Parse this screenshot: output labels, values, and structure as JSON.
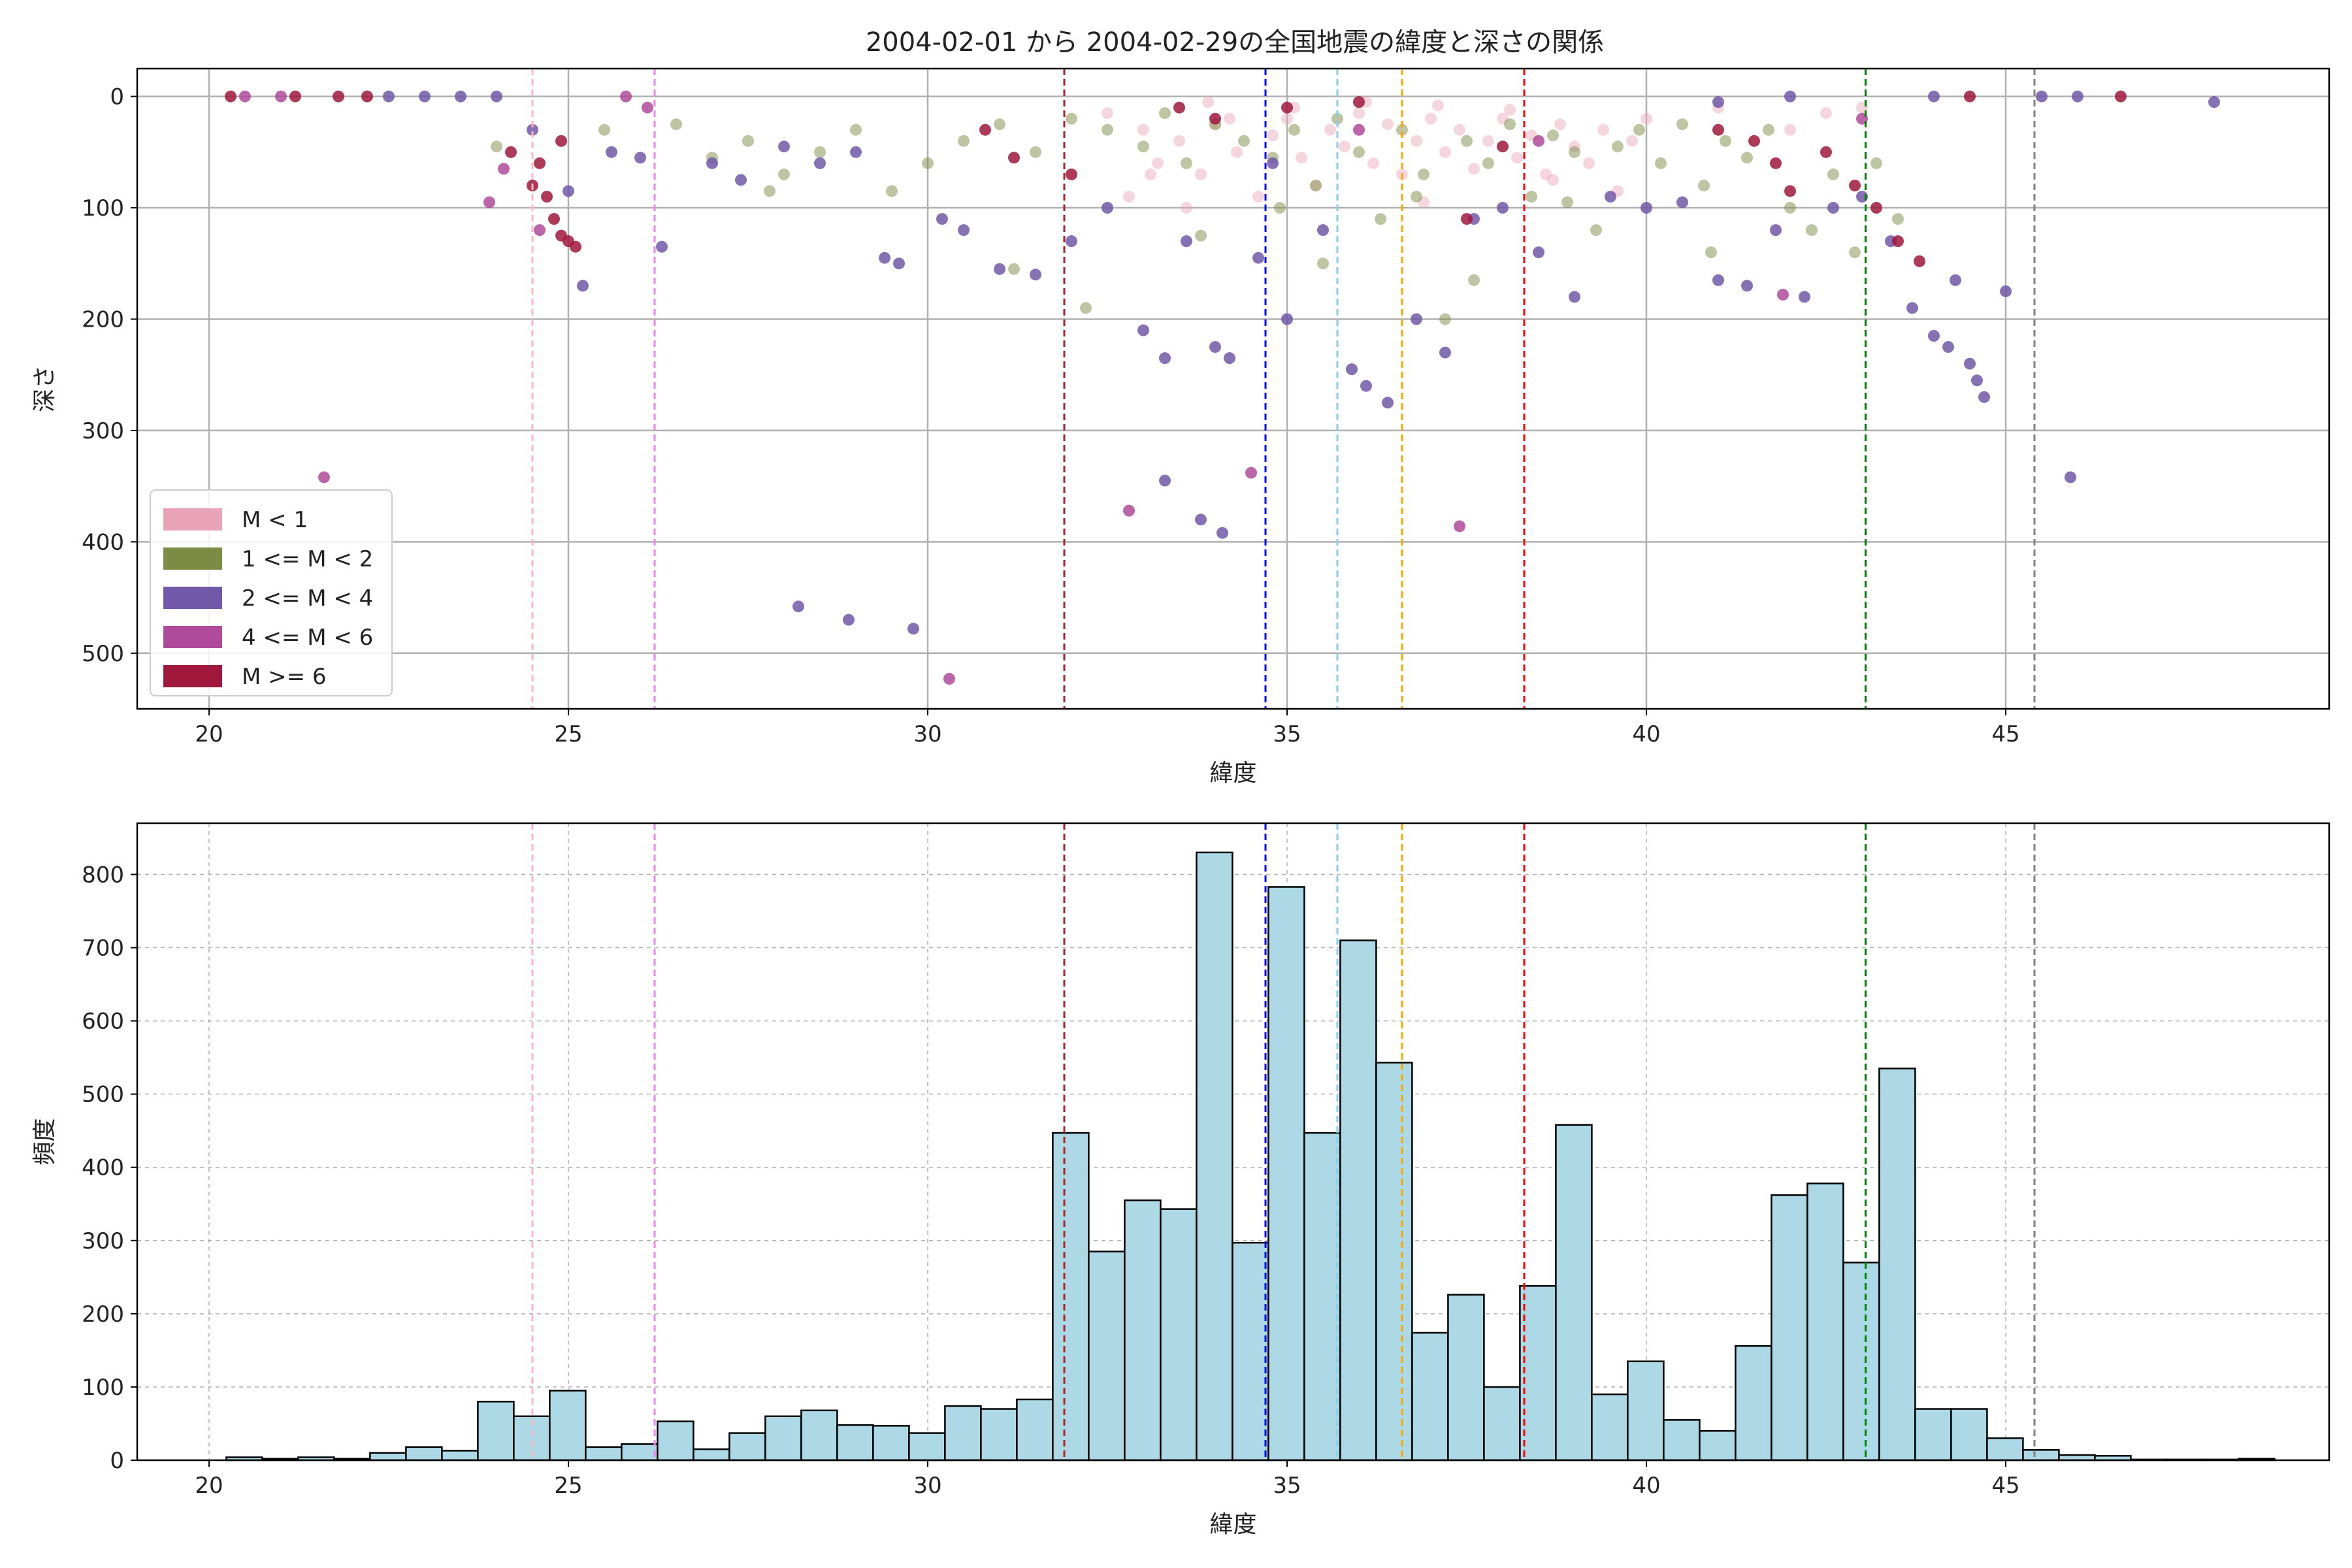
{
  "figure": {
    "title": "2004-02-01 から 2004-02-29の全国地震の緯度と深さの関係"
  },
  "colors": {
    "m_lt1": "#e8a3b8",
    "m_1_2": "#7d8c45",
    "m_2_4": "#7258a8",
    "m_4_6": "#b04a9a",
    "m_ge6": "#a0183c",
    "hist_bar": "#add8e6",
    "grid": "#b0b0b0"
  },
  "chart_data": [
    {
      "type": "scatter",
      "title": "2004-02-01 から 2004-02-29の全国地震の緯度と深さの関係",
      "xlabel": "緯度",
      "ylabel": "深さ",
      "xlim": [
        19,
        49.5
      ],
      "ylim": [
        550,
        -25
      ],
      "y_inverted": true,
      "x_ticks": [
        20,
        25,
        30,
        35,
        40,
        45
      ],
      "y_ticks": [
        0,
        100,
        200,
        300,
        400,
        500
      ],
      "grid": true,
      "legend_position": "lower-left",
      "legend": [
        "M < 1",
        "1 <= M < 2",
        "2 <= M < 4",
        "4 <= M < 6",
        "M >= 6"
      ],
      "vlines": [
        {
          "x": 24.5,
          "color": "#ffb6c1"
        },
        {
          "x": 26.2,
          "color": "#ee82ee"
        },
        {
          "x": 31.9,
          "color": "#b22222"
        },
        {
          "x": 34.7,
          "color": "#0000ff"
        },
        {
          "x": 35.7,
          "color": "#87ceeb"
        },
        {
          "x": 36.6,
          "color": "#ffa500"
        },
        {
          "x": 38.3,
          "color": "#ff0000"
        },
        {
          "x": 43.05,
          "color": "#008000"
        },
        {
          "x": 45.4,
          "color": "#808080"
        }
      ],
      "series": [
        {
          "name": "M < 1",
          "color": "#e8a3b8",
          "points": [
            [
              32.5,
              15
            ],
            [
              33,
              30
            ],
            [
              33.2,
              60
            ],
            [
              33.5,
              40
            ],
            [
              33.8,
              70
            ],
            [
              34,
              25
            ],
            [
              34.3,
              50
            ],
            [
              34.6,
              90
            ],
            [
              34.8,
              35
            ],
            [
              35,
              20
            ],
            [
              35.2,
              55
            ],
            [
              35.4,
              80
            ],
            [
              35.6,
              30
            ],
            [
              35.8,
              45
            ],
            [
              36,
              15
            ],
            [
              36.2,
              60
            ],
            [
              36.4,
              25
            ],
            [
              36.6,
              70
            ],
            [
              36.8,
              40
            ],
            [
              37,
              20
            ],
            [
              37.2,
              50
            ],
            [
              37.4,
              30
            ],
            [
              37.6,
              65
            ],
            [
              37.8,
              40
            ],
            [
              38,
              20
            ],
            [
              38.2,
              55
            ],
            [
              38.4,
              35
            ],
            [
              38.6,
              70
            ],
            [
              38.8,
              25
            ],
            [
              39,
              45
            ],
            [
              39.2,
              60
            ],
            [
              39.4,
              30
            ],
            [
              39.6,
              85
            ],
            [
              39.8,
              40
            ],
            [
              40,
              20
            ],
            [
              41,
              10
            ],
            [
              42,
              30
            ],
            [
              42.5,
              15
            ],
            [
              43,
              10
            ],
            [
              32.8,
              90
            ],
            [
              33.6,
              100
            ],
            [
              34.2,
              20
            ],
            [
              35.1,
              10
            ],
            [
              36.1,
              5
            ],
            [
              37.1,
              8
            ],
            [
              38.1,
              12
            ],
            [
              33.1,
              70
            ],
            [
              33.9,
              5
            ],
            [
              36.9,
              95
            ],
            [
              38.7,
              75
            ]
          ]
        },
        {
          "name": "1 <= M < 2",
          "color": "#7d8c45",
          "points": [
            [
              24,
              45
            ],
            [
              25.5,
              30
            ],
            [
              26.5,
              25
            ],
            [
              27,
              55
            ],
            [
              27.5,
              40
            ],
            [
              28,
              70
            ],
            [
              28.5,
              50
            ],
            [
              29,
              30
            ],
            [
              29.5,
              85
            ],
            [
              30,
              60
            ],
            [
              30.5,
              40
            ],
            [
              31,
              25
            ],
            [
              31.5,
              50
            ],
            [
              32,
              20
            ],
            [
              32.2,
              190
            ],
            [
              32.5,
              30
            ],
            [
              33,
              45
            ],
            [
              33.3,
              15
            ],
            [
              33.6,
              60
            ],
            [
              34,
              25
            ],
            [
              34.4,
              40
            ],
            [
              34.8,
              55
            ],
            [
              35.1,
              30
            ],
            [
              35.4,
              80
            ],
            [
              35.7,
              20
            ],
            [
              36,
              50
            ],
            [
              36.3,
              110
            ],
            [
              36.6,
              30
            ],
            [
              36.9,
              70
            ],
            [
              37.2,
              200
            ],
            [
              37.5,
              40
            ],
            [
              37.8,
              60
            ],
            [
              38.1,
              25
            ],
            [
              38.4,
              90
            ],
            [
              38.7,
              35
            ],
            [
              39,
              50
            ],
            [
              39.3,
              120
            ],
            [
              39.6,
              45
            ],
            [
              39.9,
              30
            ],
            [
              40.2,
              60
            ],
            [
              40.5,
              25
            ],
            [
              40.8,
              80
            ],
            [
              41.1,
              40
            ],
            [
              41.4,
              55
            ],
            [
              41.7,
              30
            ],
            [
              42,
              100
            ],
            [
              42.3,
              120
            ],
            [
              42.6,
              70
            ],
            [
              42.9,
              140
            ],
            [
              43.2,
              60
            ],
            [
              43.5,
              110
            ],
            [
              35.5,
              150
            ],
            [
              34.9,
              100
            ],
            [
              37.6,
              165
            ],
            [
              31.2,
              155
            ],
            [
              36.8,
              90
            ],
            [
              33.8,
              125
            ],
            [
              40.9,
              140
            ],
            [
              38.9,
              95
            ],
            [
              27.8,
              85
            ]
          ]
        },
        {
          "name": "2 <= M < 4",
          "color": "#7258a8",
          "points": [
            [
              22.5,
              0
            ],
            [
              23,
              0
            ],
            [
              23.5,
              0
            ],
            [
              24,
              0
            ],
            [
              24.5,
              30
            ],
            [
              25,
              85
            ],
            [
              25.2,
              170
            ],
            [
              25.6,
              50
            ],
            [
              26,
              55
            ],
            [
              26.3,
              135
            ],
            [
              27,
              60
            ],
            [
              27.4,
              75
            ],
            [
              28,
              45
            ],
            [
              28.5,
              60
            ],
            [
              29,
              50
            ],
            [
              29.4,
              145
            ],
            [
              29.6,
              150
            ],
            [
              30.2,
              110
            ],
            [
              30.5,
              120
            ],
            [
              31,
              155
            ],
            [
              31.5,
              160
            ],
            [
              32,
              130
            ],
            [
              32.5,
              100
            ],
            [
              33,
              210
            ],
            [
              33.3,
              235
            ],
            [
              33.6,
              130
            ],
            [
              34,
              225
            ],
            [
              34.2,
              235
            ],
            [
              34.6,
              145
            ],
            [
              34.8,
              60
            ],
            [
              35,
              200
            ],
            [
              35.5,
              120
            ],
            [
              35.9,
              245
            ],
            [
              36.1,
              260
            ],
            [
              36.4,
              275
            ],
            [
              36.8,
              200
            ],
            [
              37.2,
              230
            ],
            [
              37.6,
              110
            ],
            [
              38,
              100
            ],
            [
              38.5,
              140
            ],
            [
              39,
              180
            ],
            [
              39.5,
              90
            ],
            [
              40,
              100
            ],
            [
              40.5,
              95
            ],
            [
              41,
              165
            ],
            [
              41.4,
              170
            ],
            [
              41.8,
              120
            ],
            [
              42.2,
              180
            ],
            [
              42.6,
              100
            ],
            [
              43,
              90
            ],
            [
              43.4,
              130
            ],
            [
              43.7,
              190
            ],
            [
              44,
              215
            ],
            [
              44.2,
              225
            ],
            [
              44.5,
              240
            ],
            [
              44.6,
              255
            ],
            [
              44.7,
              270
            ],
            [
              44.3,
              165
            ],
            [
              45,
              175
            ],
            [
              45.9,
              342
            ],
            [
              47.9,
              5
            ],
            [
              33.3,
              345
            ],
            [
              33.8,
              380
            ],
            [
              34.1,
              392
            ],
            [
              28.2,
              458
            ],
            [
              28.9,
              470
            ],
            [
              29.8,
              478
            ],
            [
              41,
              5
            ],
            [
              42,
              0
            ],
            [
              44,
              0
            ],
            [
              45.5,
              0
            ],
            [
              46,
              0
            ]
          ]
        },
        {
          "name": "4 <= M < 6",
          "color": "#b04a9a",
          "points": [
            [
              20.5,
              0
            ],
            [
              21,
              0
            ],
            [
              21.6,
              342
            ],
            [
              23.9,
              95
            ],
            [
              24.1,
              65
            ],
            [
              24.6,
              120
            ],
            [
              30.3,
              523
            ],
            [
              32.8,
              372
            ],
            [
              34.5,
              338
            ],
            [
              37.4,
              386
            ],
            [
              41.9,
              178
            ],
            [
              43,
              20
            ],
            [
              38.5,
              40
            ],
            [
              36,
              30
            ],
            [
              26.1,
              10
            ],
            [
              25.8,
              0
            ]
          ]
        },
        {
          "name": "M >= 6",
          "color": "#a0183c",
          "points": [
            [
              20.3,
              0
            ],
            [
              21.2,
              0
            ],
            [
              21.8,
              0
            ],
            [
              22.2,
              0
            ],
            [
              24.2,
              50
            ],
            [
              24.5,
              80
            ],
            [
              24.7,
              90
            ],
            [
              24.8,
              110
            ],
            [
              24.9,
              125
            ],
            [
              25,
              130
            ],
            [
              25.1,
              135
            ],
            [
              24.6,
              60
            ],
            [
              24.9,
              40
            ],
            [
              30.8,
              30
            ],
            [
              31.2,
              55
            ],
            [
              32,
              70
            ],
            [
              33.5,
              10
            ],
            [
              34,
              20
            ],
            [
              35,
              10
            ],
            [
              36,
              5
            ],
            [
              37.5,
              110
            ],
            [
              38,
              45
            ],
            [
              41,
              30
            ],
            [
              41.5,
              40
            ],
            [
              41.8,
              60
            ],
            [
              42,
              85
            ],
            [
              42.5,
              50
            ],
            [
              42.9,
              80
            ],
            [
              43.2,
              100
            ],
            [
              43.5,
              130
            ],
            [
              43.8,
              148
            ],
            [
              44.5,
              0
            ],
            [
              46.6,
              0
            ]
          ]
        }
      ]
    },
    {
      "type": "bar",
      "subtype": "histogram",
      "xlabel": "緯度",
      "ylabel": "頻度",
      "xlim": [
        19,
        49.5
      ],
      "ylim": [
        0,
        870
      ],
      "x_ticks": [
        20,
        25,
        30,
        35,
        40,
        45
      ],
      "y_ticks": [
        0,
        100,
        200,
        300,
        400,
        500,
        600,
        700,
        800
      ],
      "grid": true,
      "bin_start": 20.24,
      "bin_width": 0.5,
      "values": [
        4,
        2,
        4,
        2,
        10,
        18,
        13,
        80,
        60,
        95,
        18,
        22,
        53,
        15,
        37,
        60,
        68,
        48,
        47,
        37,
        74,
        70,
        83,
        447,
        285,
        355,
        343,
        830,
        297,
        783,
        447,
        710,
        543,
        174,
        226,
        100,
        238,
        458,
        90,
        135,
        55,
        40,
        156,
        362,
        378,
        270,
        535,
        70,
        70,
        30,
        14,
        7,
        6,
        1,
        1,
        1,
        2
      ],
      "vlines": [
        {
          "x": 24.5,
          "color": "#ffb6c1"
        },
        {
          "x": 26.2,
          "color": "#ee82ee"
        },
        {
          "x": 31.9,
          "color": "#b22222"
        },
        {
          "x": 34.7,
          "color": "#0000ff"
        },
        {
          "x": 35.7,
          "color": "#87ceeb"
        },
        {
          "x": 36.6,
          "color": "#ffa500"
        },
        {
          "x": 38.3,
          "color": "#ff0000"
        },
        {
          "x": 43.05,
          "color": "#008000"
        },
        {
          "x": 45.4,
          "color": "#808080"
        }
      ]
    }
  ]
}
